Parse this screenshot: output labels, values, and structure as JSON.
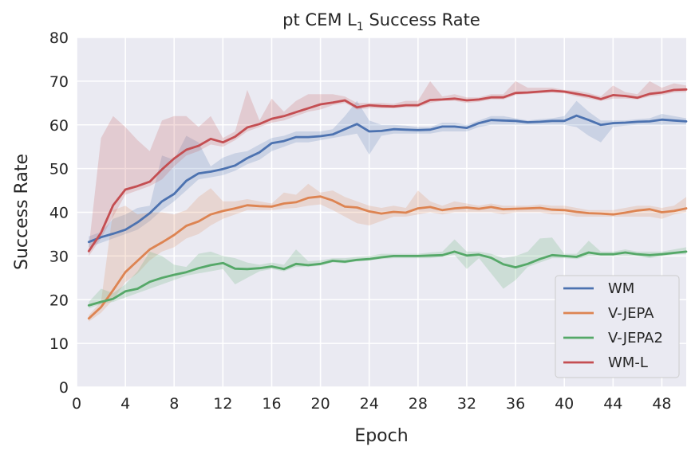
{
  "chart_data": {
    "type": "line",
    "title": "pt CEM L",
    "title_sub": "1",
    "title_suffix": " Success Rate",
    "xlabel": "Epoch",
    "ylabel": "Success Rate",
    "xlim": [
      0,
      50
    ],
    "ylim": [
      0,
      80
    ],
    "xticks": [
      "0",
      "4",
      "8",
      "12",
      "16",
      "20",
      "24",
      "28",
      "32",
      "36",
      "40",
      "44",
      "48"
    ],
    "yticks": [
      "0",
      "10",
      "20",
      "30",
      "40",
      "50",
      "60",
      "70",
      "80"
    ],
    "grid": true,
    "background": "#eaeaf2",
    "legend_position": "lower-right",
    "x": [
      1,
      2,
      3,
      4,
      5,
      6,
      7,
      8,
      9,
      10,
      11,
      12,
      13,
      14,
      15,
      16,
      17,
      18,
      19,
      20,
      21,
      22,
      23,
      24,
      25,
      26,
      27,
      28,
      29,
      30,
      31,
      32,
      33,
      34,
      35,
      36,
      37,
      38,
      39,
      40,
      41,
      42,
      43,
      44,
      45,
      46,
      47,
      48,
      49,
      50
    ],
    "series": [
      {
        "name": "WM",
        "color": "#4c72b0",
        "values": [
          33.2,
          34.3,
          35.1,
          36.0,
          37.7,
          39.8,
          42.5,
          44.2,
          47.2,
          48.9,
          49.3,
          49.9,
          50.7,
          52.4,
          53.7,
          55.8,
          56.3,
          57.2,
          57.2,
          57.4,
          57.8,
          59.0,
          60.2,
          58.5,
          58.6,
          59.0,
          58.9,
          58.8,
          58.9,
          59.6,
          59.6,
          59.3,
          60.4,
          61.1,
          61.0,
          60.9,
          60.6,
          60.7,
          60.9,
          60.9,
          62.1,
          61.1,
          60.0,
          60.4,
          60.5,
          60.7,
          60.8,
          61.2,
          61.0,
          60.8
        ],
        "band_low": [
          32.0,
          33.0,
          34.0,
          35.0,
          36.0,
          38.0,
          40.5,
          42.5,
          45.0,
          47.5,
          48.0,
          48.5,
          49.5,
          51.0,
          52.0,
          54.0,
          55.0,
          56.0,
          56.0,
          56.5,
          57.0,
          57.5,
          58.0,
          53.2,
          57.5,
          58.0,
          58.0,
          58.0,
          58.0,
          58.5,
          58.5,
          58.5,
          59.5,
          60.0,
          60.0,
          60.0,
          60.0,
          60.0,
          60.0,
          60.0,
          59.5,
          57.5,
          56.0,
          59.5,
          59.8,
          60.0,
          60.0,
          60.0,
          60.0,
          60.0
        ],
        "band_high": [
          34.5,
          35.5,
          38.5,
          39.5,
          41.0,
          41.5,
          53.0,
          52.0,
          57.5,
          56.0,
          50.5,
          52.5,
          53.5,
          54.0,
          55.5,
          57.0,
          57.5,
          58.5,
          58.5,
          58.5,
          59.0,
          62.0,
          65.5,
          61.0,
          60.0,
          60.0,
          59.8,
          59.5,
          59.5,
          60.5,
          60.5,
          60.0,
          61.0,
          62.0,
          62.0,
          61.5,
          61.0,
          61.3,
          61.5,
          62.0,
          65.5,
          63.0,
          61.0,
          61.0,
          61.0,
          61.3,
          61.5,
          62.5,
          62.0,
          61.5
        ]
      },
      {
        "name": "V-JEPA",
        "color": "#dd8452",
        "values": [
          15.7,
          18.3,
          22.2,
          26.3,
          28.9,
          31.5,
          33.1,
          34.8,
          36.9,
          37.9,
          39.5,
          40.3,
          40.9,
          41.6,
          41.4,
          41.3,
          42.0,
          42.3,
          43.3,
          43.6,
          42.7,
          41.3,
          41.1,
          40.2,
          39.7,
          40.1,
          39.9,
          40.9,
          41.2,
          40.5,
          40.9,
          41.1,
          40.8,
          41.2,
          40.7,
          40.8,
          40.9,
          41.0,
          40.6,
          40.5,
          40.1,
          39.8,
          39.7,
          39.5,
          39.9,
          40.4,
          40.7,
          40.0,
          40.3,
          40.9
        ],
        "band_low": [
          15.0,
          17.0,
          20.0,
          24.0,
          26.0,
          29.0,
          31.0,
          32.0,
          34.0,
          35.0,
          37.0,
          38.5,
          39.5,
          40.5,
          40.5,
          40.5,
          40.8,
          41.0,
          41.5,
          41.8,
          40.5,
          39.0,
          37.5,
          37.0,
          38.0,
          39.0,
          39.0,
          39.5,
          40.0,
          39.5,
          40.0,
          40.0,
          40.0,
          40.0,
          39.5,
          40.0,
          40.0,
          40.0,
          39.5,
          39.5,
          39.0,
          39.0,
          39.0,
          39.0,
          39.0,
          39.0,
          39.0,
          38.5,
          39.5,
          40.0
        ],
        "band_high": [
          16.5,
          19.5,
          40.5,
          41.5,
          39.5,
          40.0,
          40.0,
          39.5,
          40.5,
          43.5,
          45.5,
          42.5,
          42.5,
          43.0,
          42.5,
          42.0,
          44.5,
          44.0,
          46.5,
          44.5,
          45.0,
          43.5,
          42.5,
          41.5,
          41.0,
          41.5,
          41.0,
          45.0,
          42.5,
          41.5,
          42.5,
          42.0,
          41.5,
          42.0,
          41.5,
          41.5,
          41.5,
          41.8,
          41.5,
          41.5,
          41.0,
          40.5,
          40.5,
          40.5,
          41.0,
          41.5,
          41.5,
          41.0,
          41.5,
          43.5
        ]
      },
      {
        "name": "V-JEPA2",
        "color": "#55a868",
        "values": [
          18.7,
          19.5,
          20.2,
          21.9,
          22.5,
          24.1,
          25.0,
          25.7,
          26.3,
          27.2,
          27.9,
          28.4,
          27.1,
          27.0,
          27.2,
          27.6,
          27.0,
          28.2,
          27.9,
          28.2,
          28.9,
          28.7,
          29.1,
          29.3,
          29.7,
          30.0,
          30.0,
          30.0,
          30.1,
          30.2,
          31.0,
          30.1,
          30.3,
          29.6,
          28.1,
          27.4,
          28.2,
          29.3,
          30.2,
          30.0,
          29.8,
          30.8,
          30.4,
          30.4,
          30.8,
          30.4,
          30.2,
          30.4,
          30.7,
          31.0
        ],
        "band_low": [
          18.0,
          19.0,
          19.5,
          20.5,
          21.5,
          22.5,
          23.5,
          24.5,
          25.5,
          26.0,
          26.5,
          27.0,
          23.5,
          25.0,
          26.5,
          27.0,
          26.5,
          27.5,
          27.5,
          27.8,
          28.5,
          28.3,
          28.8,
          29.0,
          29.3,
          29.5,
          29.5,
          29.5,
          29.5,
          29.8,
          30.2,
          27.0,
          29.5,
          26.0,
          22.5,
          24.5,
          27.5,
          28.5,
          29.5,
          29.5,
          29.3,
          30.0,
          30.0,
          30.0,
          30.0,
          30.0,
          29.5,
          30.0,
          30.3,
          30.5
        ],
        "band_high": [
          19.5,
          22.5,
          21.5,
          23.5,
          26.5,
          31.0,
          30.0,
          28.0,
          27.5,
          30.5,
          31.0,
          30.0,
          29.5,
          28.5,
          28.0,
          28.5,
          28.0,
          31.5,
          28.8,
          29.0,
          29.5,
          29.5,
          29.8,
          30.0,
          30.5,
          30.5,
          30.5,
          30.5,
          30.8,
          31.0,
          33.8,
          31.0,
          31.0,
          30.5,
          29.5,
          30.0,
          31.0,
          34.0,
          34.2,
          30.5,
          30.5,
          33.5,
          31.0,
          31.0,
          31.5,
          31.0,
          31.0,
          31.0,
          31.5,
          32.0
        ]
      },
      {
        "name": "WM-L",
        "color": "#c44e52",
        "values": [
          31.1,
          35.3,
          41.6,
          45.2,
          46.0,
          47.0,
          49.8,
          52.3,
          54.3,
          55.2,
          56.8,
          56.0,
          57.3,
          59.4,
          60.2,
          61.4,
          62.0,
          62.9,
          63.8,
          64.7,
          65.1,
          65.6,
          64.0,
          64.5,
          64.3,
          64.2,
          64.5,
          64.5,
          65.7,
          65.8,
          66.0,
          65.6,
          65.8,
          66.3,
          66.3,
          67.3,
          67.4,
          67.6,
          67.8,
          67.6,
          67.1,
          66.6,
          65.9,
          66.8,
          66.6,
          66.2,
          67.1,
          67.4,
          68.0,
          68.1
        ],
        "band_low": [
          30.0,
          34.0,
          39.0,
          44.0,
          45.0,
          46.0,
          47.5,
          50.5,
          53.0,
          54.0,
          55.5,
          55.0,
          56.5,
          58.5,
          59.5,
          60.5,
          61.0,
          62.0,
          63.0,
          63.5,
          64.5,
          65.0,
          63.5,
          63.8,
          63.8,
          63.8,
          64.0,
          64.0,
          65.0,
          65.5,
          65.5,
          65.0,
          65.3,
          65.8,
          65.8,
          66.8,
          67.0,
          67.2,
          67.4,
          67.2,
          66.5,
          66.0,
          65.5,
          66.0,
          66.0,
          65.8,
          66.5,
          66.8,
          67.4,
          67.5
        ],
        "band_high": [
          32.0,
          57.0,
          62.0,
          59.5,
          56.5,
          54.0,
          61.0,
          62.0,
          62.0,
          59.5,
          62.0,
          57.0,
          58.5,
          68.0,
          61.0,
          66.0,
          63.0,
          65.5,
          67.0,
          67.0,
          67.0,
          66.5,
          65.0,
          65.0,
          65.0,
          64.8,
          65.5,
          65.5,
          70.0,
          66.5,
          67.0,
          66.3,
          66.3,
          67.0,
          67.0,
          70.0,
          68.5,
          68.5,
          68.5,
          68.0,
          67.8,
          67.3,
          66.5,
          69.0,
          67.5,
          67.0,
          70.0,
          68.5,
          69.5,
          69.0
        ]
      }
    ]
  }
}
